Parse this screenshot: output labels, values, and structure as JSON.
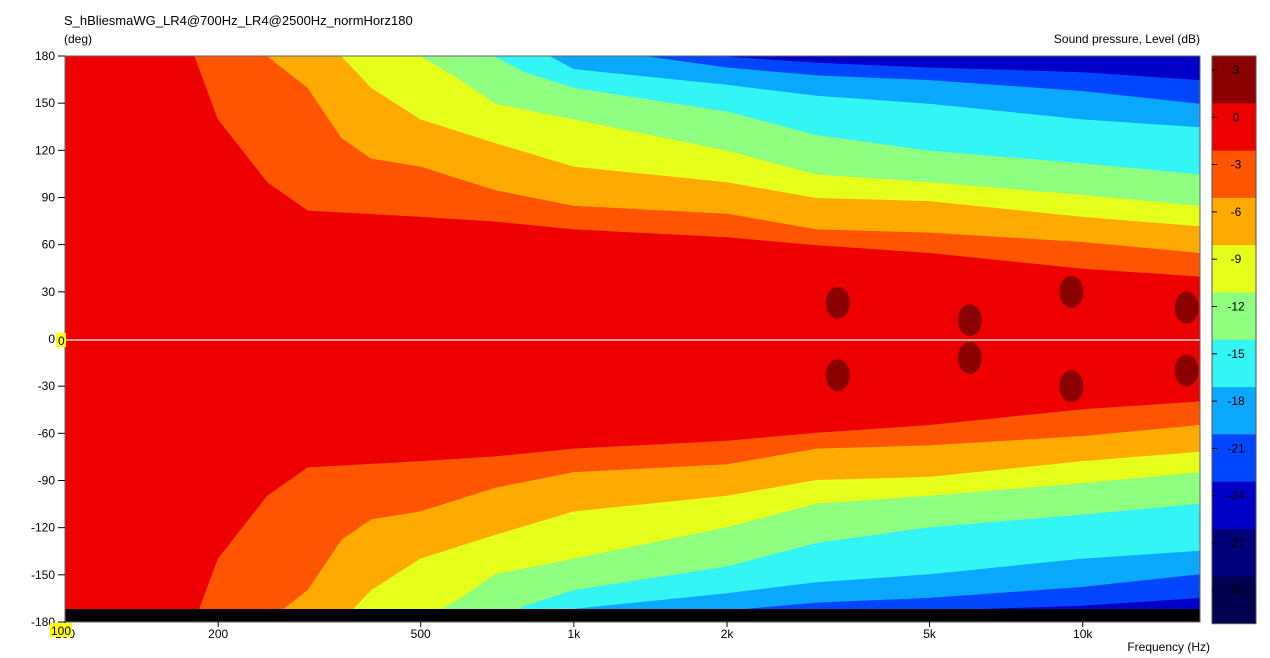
{
  "chart_data": {
    "type": "heatmap",
    "title": "S_hBliesmaWG_LR4@700Hz_LR4@2500Hz_normHorz180",
    "ylabel": "(deg)",
    "xlabel": "Frequency  (Hz)",
    "colorbar_label": "Sound pressure, Level  (dB)",
    "x_scale": "log",
    "xlim": [
      100,
      17000
    ],
    "ylim": [
      -180,
      180
    ],
    "x_tick_labels": [
      "100",
      "200",
      "500",
      "1k",
      "2k",
      "5k",
      "10k"
    ],
    "x_tick_values": [
      100,
      200,
      500,
      1000,
      2000,
      5000,
      10000
    ],
    "y_tick_labels": [
      "180",
      "150",
      "120",
      "90",
      "60",
      "30",
      "0",
      "-30",
      "-60",
      "-90",
      "-120",
      "-150",
      "-180"
    ],
    "y_tick_values": [
      180,
      150,
      120,
      90,
      60,
      30,
      0,
      -30,
      -60,
      -90,
      -120,
      -150,
      -180
    ],
    "zero_line_label": "0",
    "x_start_marker_label": "100",
    "colorbar_levels": [
      "3",
      "0",
      "-3",
      "-6",
      "-9",
      "-12",
      "-15",
      "-18",
      "-21",
      "-24",
      "-27",
      "-30"
    ],
    "colorbar_colors": [
      "#8b0000",
      "#ee0000",
      "#ff5500",
      "#ffaa00",
      "#e6ff1a",
      "#8fff80",
      "#33f5f5",
      "#0aa8ff",
      "#0046ff",
      "#0000c8",
      "#00007a",
      "#000050"
    ],
    "contour_boundaries_deg": {
      "-3": {
        "freq": [
          100,
          180,
          200,
          250,
          300,
          500,
          700,
          1000,
          2000,
          3000,
          5000,
          10000,
          17000
        ],
        "angle": [
          180,
          180,
          140,
          100,
          82,
          78,
          75,
          70,
          65,
          60,
          55,
          45,
          40
        ]
      },
      "-6": {
        "freq": [
          100,
          250,
          300,
          350,
          400,
          500,
          700,
          1000,
          2000,
          3000,
          5000,
          10000,
          17000
        ],
        "angle": [
          180,
          180,
          160,
          128,
          115,
          110,
          95,
          85,
          80,
          70,
          68,
          62,
          55
        ]
      },
      "-9": {
        "freq": [
          100,
          350,
          400,
          500,
          700,
          1000,
          2000,
          3000,
          5000,
          10000,
          17000
        ],
        "angle": [
          180,
          180,
          160,
          140,
          125,
          110,
          100,
          90,
          88,
          78,
          72
        ]
      },
      "-12": {
        "freq": [
          100,
          500,
          600,
          700,
          1000,
          2000,
          3000,
          5000,
          10000,
          17000
        ],
        "angle": [
          180,
          180,
          165,
          150,
          140,
          120,
          105,
          100,
          92,
          85
        ]
      },
      "-15": {
        "freq": [
          100,
          700,
          800,
          1000,
          2000,
          3000,
          5000,
          10000,
          17000
        ],
        "angle": [
          180,
          180,
          170,
          160,
          145,
          130,
          120,
          112,
          105
        ]
      },
      "-18": {
        "freq": [
          100,
          900,
          1000,
          2000,
          3000,
          5000,
          10000,
          17000
        ],
        "angle": [
          180,
          180,
          172,
          162,
          155,
          150,
          140,
          135
        ]
      },
      "-21": {
        "freq": [
          100,
          1400,
          2000,
          3000,
          5000,
          10000,
          17000
        ],
        "angle": [
          180,
          180,
          173,
          168,
          165,
          158,
          150
        ]
      },
      "-24": {
        "freq": [
          100,
          2000,
          3000,
          5000,
          10000,
          17000
        ],
        "angle": [
          180,
          180,
          176,
          173,
          170,
          165
        ]
      }
    },
    "on_axis_peaks": [
      {
        "freq": 3300,
        "angle": 23,
        "level": "0 to 3"
      },
      {
        "freq": 3300,
        "angle": -23,
        "level": "0 to 3"
      },
      {
        "freq": 6000,
        "angle": 12,
        "level": "0 to 3"
      },
      {
        "freq": 6000,
        "angle": -12,
        "level": "0 to 3"
      },
      {
        "freq": 9500,
        "angle": 30,
        "level": "0 to 3"
      },
      {
        "freq": 9500,
        "angle": -30,
        "level": "0 to 3"
      },
      {
        "freq": 16000,
        "angle": 20,
        "level": "0 to 3"
      },
      {
        "freq": 16000,
        "angle": -20,
        "level": "0 to 3"
      }
    ]
  }
}
